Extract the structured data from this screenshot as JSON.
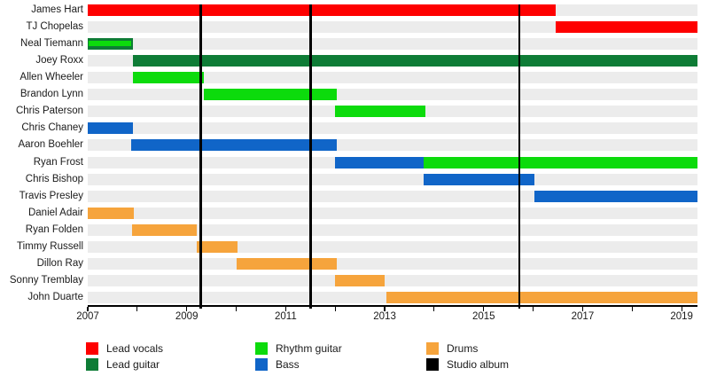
{
  "colors": {
    "lead_vocals": "#fe0000",
    "lead_guitar": "#0e7c36",
    "rhythm_guitar": "#0cdb0c",
    "bass": "#1065c8",
    "drums": "#f6a43c",
    "studio_album": "#000000",
    "row_track": "#ececec",
    "axis": "#000000",
    "text": "#1a1a1a"
  },
  "chart_data": {
    "type": "gantt-timeline",
    "x_axis": {
      "min": 2007,
      "max": 2019.32,
      "tick_step": 1,
      "labels": [
        "2007",
        "2009",
        "2011",
        "2013",
        "2015",
        "2017",
        "2019"
      ],
      "label_years": [
        2007,
        2009,
        2011,
        2013,
        2015,
        2017,
        2019
      ]
    },
    "members": [
      {
        "name": "James Hart",
        "segments": [
          {
            "role": "lead_vocals",
            "start": 2007.0,
            "end": 2016.45
          }
        ]
      },
      {
        "name": "TJ Chopelas",
        "segments": [
          {
            "role": "lead_vocals",
            "start": 2016.45,
            "end": 2019.32
          }
        ]
      },
      {
        "name": "Neal Tiemann",
        "segments": [
          {
            "role": "lead_guitar",
            "start": 2007.0,
            "end": 2007.92,
            "overlay_role": "rhythm_guitar"
          }
        ]
      },
      {
        "name": "Joey Roxx",
        "segments": [
          {
            "role": "lead_guitar",
            "start": 2007.92,
            "end": 2019.32
          }
        ]
      },
      {
        "name": "Allen Wheeler",
        "segments": [
          {
            "role": "rhythm_guitar",
            "start": 2007.92,
            "end": 2009.35
          }
        ]
      },
      {
        "name": "Brandon Lynn",
        "segments": [
          {
            "role": "rhythm_guitar",
            "start": 2009.35,
            "end": 2012.03
          }
        ]
      },
      {
        "name": "Chris Paterson",
        "segments": [
          {
            "role": "rhythm_guitar",
            "start": 2012.0,
            "end": 2013.83
          }
        ]
      },
      {
        "name": "Chris Chaney",
        "segments": [
          {
            "role": "bass",
            "start": 2007.0,
            "end": 2007.92
          }
        ]
      },
      {
        "name": "Aaron Boehler",
        "segments": [
          {
            "role": "bass",
            "start": 2007.88,
            "end": 2012.03
          }
        ]
      },
      {
        "name": "Ryan Frost",
        "segments": [
          {
            "role": "bass",
            "start": 2012.0,
            "end": 2013.78
          },
          {
            "role": "rhythm_guitar",
            "start": 2013.78,
            "end": 2019.32
          }
        ]
      },
      {
        "name": "Chris Bishop",
        "segments": [
          {
            "role": "bass",
            "start": 2013.78,
            "end": 2016.03
          }
        ]
      },
      {
        "name": "Travis Presley",
        "segments": [
          {
            "role": "bass",
            "start": 2016.02,
            "end": 2019.32
          }
        ]
      },
      {
        "name": "Daniel Adair",
        "segments": [
          {
            "role": "drums",
            "start": 2007.0,
            "end": 2007.93
          }
        ]
      },
      {
        "name": "Ryan Folden",
        "segments": [
          {
            "role": "drums",
            "start": 2007.9,
            "end": 2009.2
          }
        ]
      },
      {
        "name": "Timmy Russell",
        "segments": [
          {
            "role": "drums",
            "start": 2009.2,
            "end": 2010.03
          }
        ]
      },
      {
        "name": "Dillon Ray",
        "segments": [
          {
            "role": "drums",
            "start": 2010.01,
            "end": 2012.03
          }
        ]
      },
      {
        "name": "Sonny Tremblay",
        "segments": [
          {
            "role": "drums",
            "start": 2012.0,
            "end": 2013.0
          }
        ]
      },
      {
        "name": "John Duarte",
        "segments": [
          {
            "role": "drums",
            "start": 2013.03,
            "end": 2019.32
          }
        ]
      }
    ],
    "albums": [
      2009.28,
      2011.5,
      2015.72
    ],
    "legend_columns": [
      [
        {
          "label": "Lead vocals",
          "key": "lead_vocals"
        },
        {
          "label": "Lead guitar",
          "key": "lead_guitar"
        }
      ],
      [
        {
          "label": "Rhythm guitar",
          "key": "rhythm_guitar"
        },
        {
          "label": "Bass",
          "key": "bass"
        }
      ],
      [
        {
          "label": "Drums",
          "key": "drums"
        },
        {
          "label": "Studio album",
          "key": "studio_album"
        }
      ]
    ]
  }
}
